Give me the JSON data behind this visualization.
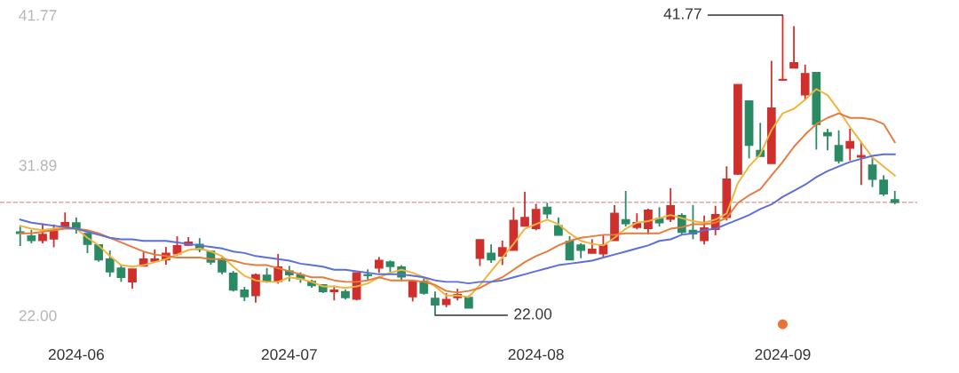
{
  "chart_data": {
    "type": "candlestick",
    "categories": [
      null,
      null,
      null,
      null,
      null,
      "2024-06",
      null,
      null,
      null,
      null,
      null,
      null,
      null,
      null,
      null,
      null,
      null,
      null,
      null,
      null,
      null,
      null,
      null,
      null,
      "2024-07",
      null,
      null,
      null,
      null,
      null,
      null,
      null,
      null,
      null,
      null,
      null,
      null,
      null,
      null,
      null,
      null,
      null,
      null,
      null,
      null,
      null,
      "2024-08",
      null,
      null,
      null,
      null,
      null,
      null,
      null,
      null,
      null,
      null,
      null,
      null,
      null,
      null,
      null,
      null,
      null,
      null,
      null,
      null,
      null,
      "2024-09",
      null,
      null,
      null,
      null,
      null,
      null,
      null,
      null,
      null,
      null
    ],
    "ylim": [
      22.0,
      41.77
    ],
    "yticks": [
      {
        "value": 22.0,
        "label": "22.00"
      },
      {
        "value": 31.89,
        "label": "31.89"
      },
      {
        "value": 41.77,
        "label": "41.77"
      }
    ],
    "ref_lines": [
      {
        "axis": "y",
        "value": 29.44,
        "color": "#e8a3a3",
        "line_style": "dashed"
      }
    ],
    "annotations": [
      "41.77",
      "22.00"
    ],
    "series": [
      {
        "ohlc": [
          [
            27.48,
            27.84,
            26.56,
            27.39
          ],
          [
            27.22,
            27.62,
            26.74,
            26.93
          ],
          [
            26.93,
            28.04,
            26.74,
            27.32
          ],
          [
            27.03,
            27.98,
            26.48,
            27.55
          ],
          [
            27.75,
            28.77,
            27.75,
            28.1
          ],
          [
            28.08,
            28.44,
            27.38,
            27.73
          ],
          [
            27.38,
            27.38,
            26.09,
            26.67
          ],
          [
            26.64,
            26.64,
            25.53,
            25.65
          ],
          [
            25.7,
            26.26,
            24.53,
            24.86
          ],
          [
            25.11,
            25.33,
            24.2,
            24.49
          ],
          [
            24.2,
            25.04,
            23.75,
            25.04
          ],
          [
            25.25,
            26.21,
            25.21,
            25.7
          ],
          [
            25.57,
            26.34,
            25.51,
            25.7
          ],
          [
            25.65,
            26.5,
            25.33,
            26.09
          ],
          [
            26.04,
            27.21,
            25.91,
            26.58
          ],
          [
            26.62,
            27.15,
            26.58,
            26.81
          ],
          [
            26.67,
            27.08,
            26.15,
            26.34
          ],
          [
            26.21,
            26.21,
            25.33,
            25.51
          ],
          [
            25.7,
            25.8,
            24.69,
            24.86
          ],
          [
            24.77,
            24.92,
            23.56,
            23.66
          ],
          [
            23.66,
            23.87,
            22.93,
            23.23
          ],
          [
            23.3,
            24.75,
            22.84,
            24.67
          ],
          [
            24.64,
            25.11,
            24.14,
            24.23
          ],
          [
            24.23,
            26.04,
            24.08,
            25.17
          ],
          [
            24.92,
            25.25,
            24.23,
            24.67
          ],
          [
            24.67,
            24.83,
            24.14,
            24.4
          ],
          [
            24.23,
            24.34,
            23.82,
            23.95
          ],
          [
            24.01,
            24.05,
            23.46,
            23.56
          ],
          [
            23.56,
            23.95,
            22.98,
            23.66
          ],
          [
            23.56,
            23.69,
            23.04,
            23.17
          ],
          [
            23.07,
            24.79,
            22.98,
            24.79
          ],
          [
            24.67,
            25.02,
            24.34,
            24.62
          ],
          [
            25.11,
            25.84,
            24.79,
            25.61
          ],
          [
            25.51,
            25.61,
            24.86,
            25.22
          ],
          [
            25.17,
            25.31,
            24.23,
            24.53
          ],
          [
            23.23,
            24.23,
            22.91,
            24.23
          ],
          [
            24.23,
            24.43,
            23.36,
            23.46
          ],
          [
            23.11,
            23.56,
            22.0,
            22.68
          ],
          [
            22.72,
            23.46,
            22.53,
            23.04
          ],
          [
            23.17,
            23.75,
            22.98,
            23.36
          ],
          [
            23.17,
            23.3,
            22.48,
            22.48
          ],
          [
            25.76,
            26.97,
            25.25,
            26.97
          ],
          [
            26.09,
            26.67,
            25.45,
            25.65
          ],
          [
            25.9,
            26.92,
            25.31,
            26.45
          ],
          [
            26.28,
            29.11,
            26.28,
            28.24
          ],
          [
            27.88,
            30.13,
            27.88,
            28.44
          ],
          [
            27.71,
            29.34,
            27.59,
            28.96
          ],
          [
            29.11,
            29.41,
            28.37,
            28.68
          ],
          [
            27.9,
            28.44,
            27.27,
            27.27
          ],
          [
            26.87,
            27.21,
            25.65,
            25.65
          ],
          [
            26.62,
            26.74,
            25.76,
            26.28
          ],
          [
            26.09,
            27.01,
            26.09,
            26.34
          ],
          [
            26.04,
            27.26,
            25.8,
            26.62
          ],
          [
            26.93,
            29.26,
            26.93,
            28.72
          ],
          [
            28.29,
            30.19,
            27.85,
            28.04
          ],
          [
            27.79,
            28.72,
            27.66,
            28.1
          ],
          [
            27.71,
            29.02,
            27.32,
            28.92
          ],
          [
            28.37,
            29.11,
            27.85,
            28.1
          ],
          [
            28.33,
            30.38,
            28.14,
            29.21
          ],
          [
            28.57,
            28.72,
            27.32,
            27.46
          ],
          [
            27.59,
            29.26,
            27.01,
            27.36
          ],
          [
            26.93,
            28.57,
            26.67,
            27.75
          ],
          [
            27.65,
            29.21,
            27.27,
            28.63
          ],
          [
            28.44,
            31.81,
            28.24,
            30.96
          ],
          [
            31.3,
            37.2,
            31.24,
            37.2
          ],
          [
            36.12,
            36.12,
            32.33,
            33.2
          ],
          [
            32.86,
            34.67,
            32.47,
            32.47
          ],
          [
            32.0,
            38.76,
            32.0,
            35.65
          ],
          [
            37.49,
            41.77,
            37.47,
            37.53
          ],
          [
            38.28,
            41.04,
            38.28,
            38.63
          ],
          [
            36.51,
            38.51,
            36.17,
            37.92
          ],
          [
            37.98,
            37.98,
            32.91,
            34.57
          ],
          [
            34.02,
            34.28,
            32.86,
            33.83
          ],
          [
            33.17,
            34.18,
            32.0,
            32.17
          ],
          [
            33.01,
            34.28,
            32.19,
            33.44
          ],
          [
            32.43,
            33.4,
            30.58,
            32.52
          ],
          [
            31.89,
            32.43,
            30.44,
            30.96
          ],
          [
            30.9,
            31.22,
            29.86,
            29.99
          ],
          [
            29.6,
            30.19,
            29.31,
            29.44
          ]
        ],
        "colors": [
          "#2a8a63",
          "#2a8a63",
          "#d0302d",
          "#d0302d",
          "#d0302d",
          "#2a8a63",
          "#2a8a63",
          "#2a8a63",
          "#2a8a63",
          "#2a8a63",
          "#d0302d",
          "#d0302d",
          "#d0302d",
          "#d0302d",
          "#d0302d",
          "#d0302d",
          "#2a8a63",
          "#2a8a63",
          "#2a8a63",
          "#2a8a63",
          "#2a8a63",
          "#d0302d",
          "#2a8a63",
          "#d0302d",
          "#2a8a63",
          "#2a8a63",
          "#2a8a63",
          "#2a8a63",
          "#d0302d",
          "#2a8a63",
          "#d0302d",
          "#2a8a63",
          "#d0302d",
          "#2a8a63",
          "#2a8a63",
          "#d0302d",
          "#2a8a63",
          "#2a8a63",
          "#d0302d",
          "#d0302d",
          "#2a8a63",
          "#d0302d",
          "#2a8a63",
          "#d0302d",
          "#d0302d",
          "#d0302d",
          "#d0302d",
          "#2a8a63",
          "#2a8a63",
          "#2a8a63",
          "#2a8a63",
          "#d0302d",
          "#d0302d",
          "#d0302d",
          "#2a8a63",
          "#d0302d",
          "#d0302d",
          "#2a8a63",
          "#d0302d",
          "#2a8a63",
          "#2a8a63",
          "#d0302d",
          "#d0302d",
          "#d0302d",
          "#d0302d",
          "#2a8a63",
          "#2a8a63",
          "#d0302d",
          "#d0302d",
          "#d0302d",
          "#d0302d",
          "#2a8a63",
          "#2a8a63",
          "#2a8a63",
          "#d0302d",
          "#d0302d",
          "#2a8a63",
          "#2a8a63",
          "#2a8a63"
        ]
      },
      {
        "type": "line",
        "color": "#f0b43c",
        "values": [
          27.9,
          27.7,
          27.6,
          27.7,
          27.8,
          27.7,
          27.1,
          26.6,
          25.9,
          25.3,
          25.2,
          25.3,
          25.5,
          25.7,
          26.0,
          26.3,
          26.4,
          26.2,
          25.9,
          25.2,
          24.6,
          24.3,
          24.2,
          24.2,
          24.5,
          24.4,
          24.2,
          23.9,
          23.9,
          23.8,
          23.9,
          24.1,
          24.5,
          24.8,
          25.0,
          24.8,
          24.5,
          23.9,
          23.3,
          23.3,
          23.2,
          24.0,
          24.9,
          25.8,
          26.7,
          27.7,
          28.0,
          28.3,
          28.0,
          27.4,
          26.9,
          26.7,
          26.6,
          27.1,
          27.7,
          28.1,
          28.2,
          28.4,
          28.6,
          28.4,
          28.2,
          28.1,
          28.3,
          28.7,
          30.7,
          31.8,
          32.6,
          34.2,
          35.3,
          35.6,
          36.2,
          36.9,
          36.5,
          35.5,
          34.4,
          33.4,
          32.4,
          31.8,
          31.2
        ]
      },
      {
        "type": "line",
        "color": "#e77b3c",
        "values": [
          27.4,
          27.4,
          27.5,
          27.6,
          27.7,
          27.7,
          27.6,
          27.4,
          27.1,
          26.8,
          26.5,
          26.2,
          26.0,
          25.9,
          25.8,
          25.8,
          25.8,
          25.7,
          25.7,
          25.6,
          25.4,
          25.3,
          25.3,
          25.1,
          24.9,
          24.7,
          24.5,
          24.5,
          24.3,
          24.2,
          24.2,
          24.3,
          24.5,
          24.3,
          24.3,
          24.3,
          24.2,
          24.0,
          23.6,
          23.5,
          23.6,
          23.8,
          24.2,
          24.5,
          25.0,
          25.5,
          25.9,
          26.2,
          26.6,
          26.9,
          27.1,
          27.2,
          27.3,
          27.3,
          27.4,
          27.4,
          27.4,
          27.4,
          27.7,
          27.8,
          28.0,
          28.0,
          28.1,
          28.4,
          29.4,
          29.9,
          30.3,
          31.2,
          32.1,
          33.1,
          33.9,
          34.6,
          35.0,
          35.3,
          35.0,
          35.0,
          34.9,
          34.6,
          33.4
        ]
      },
      {
        "type": "line",
        "color": "#5a6fd8",
        "values": [
          28.3,
          28.1,
          28.0,
          27.9,
          27.8,
          27.7,
          27.5,
          27.3,
          27.1,
          27.0,
          27.0,
          26.9,
          26.9,
          26.9,
          26.8,
          26.7,
          26.6,
          26.5,
          26.4,
          26.2,
          26.1,
          25.9,
          25.8,
          25.7,
          25.6,
          25.4,
          25.3,
          25.2,
          25.0,
          25.0,
          24.9,
          24.8,
          24.7,
          24.7,
          24.7,
          24.6,
          24.5,
          24.3,
          24.2,
          24.2,
          24.1,
          24.2,
          24.2,
          24.3,
          24.5,
          24.7,
          24.9,
          25.1,
          25.3,
          25.4,
          25.5,
          25.6,
          25.8,
          26.0,
          26.2,
          26.4,
          26.6,
          26.9,
          27.0,
          27.3,
          27.4,
          27.6,
          27.7,
          28.0,
          28.3,
          28.6,
          29.0,
          29.3,
          29.8,
          30.2,
          30.6,
          31.1,
          31.5,
          31.8,
          32.1,
          32.3,
          32.5,
          32.6,
          32.6
        ]
      }
    ]
  }
}
